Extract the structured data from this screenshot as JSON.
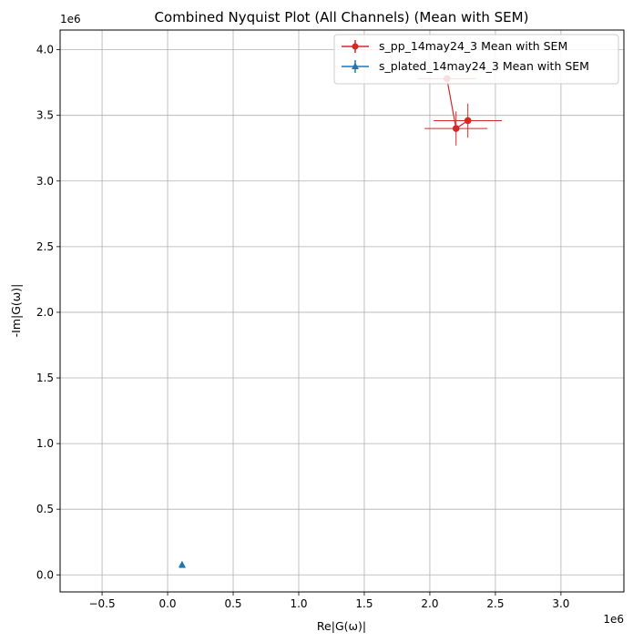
{
  "chart_data": {
    "type": "scatter",
    "title": "Combined Nyquist Plot (All Channels) (Mean with SEM)",
    "xlabel": "Re|G(ω)|",
    "ylabel": "-Im|G(ω)|",
    "x_exponent_label": "1e6",
    "y_exponent_label": "1e6",
    "xlim": [
      -0.82,
      3.48
    ],
    "ylim": [
      -0.13,
      4.15
    ],
    "x_scale": 1000000,
    "y_scale": 1000000,
    "xticks": [
      -0.5,
      0.0,
      0.5,
      1.0,
      1.5,
      2.0,
      2.5,
      3.0
    ],
    "xtick_labels": [
      "−0.5",
      "0.0",
      "0.5",
      "1.0",
      "1.5",
      "2.0",
      "2.5",
      "3.0"
    ],
    "yticks": [
      0.0,
      0.5,
      1.0,
      1.5,
      2.0,
      2.5,
      3.0,
      3.5,
      4.0
    ],
    "ytick_labels": [
      "0.0",
      "0.5",
      "1.0",
      "1.5",
      "2.0",
      "2.5",
      "3.0",
      "3.5",
      "4.0"
    ],
    "grid": true,
    "legend_position": "upper-right",
    "series": [
      {
        "name": "s_pp_14may24_3 Mean with SEM",
        "color": "#d62728",
        "marker": "circle",
        "points": [
          {
            "x": 2.13,
            "y": 3.78,
            "xerr": 0.22,
            "yerr": 0.0
          },
          {
            "x": 2.2,
            "y": 3.4,
            "xerr": 0.24,
            "yerr": 0.13
          },
          {
            "x": 2.29,
            "y": 3.46,
            "xerr": 0.26,
            "yerr": 0.13
          }
        ]
      },
      {
        "name": "s_plated_14may24_3 Mean with SEM",
        "color": "#1f77b4",
        "marker": "triangle",
        "points": [
          {
            "x": 0.11,
            "y": 0.08,
            "xerr": 0.005,
            "yerr": 0.005
          },
          {
            "x": 0.112,
            "y": 0.075,
            "xerr": 0.005,
            "yerr": 0.005
          }
        ]
      }
    ]
  }
}
